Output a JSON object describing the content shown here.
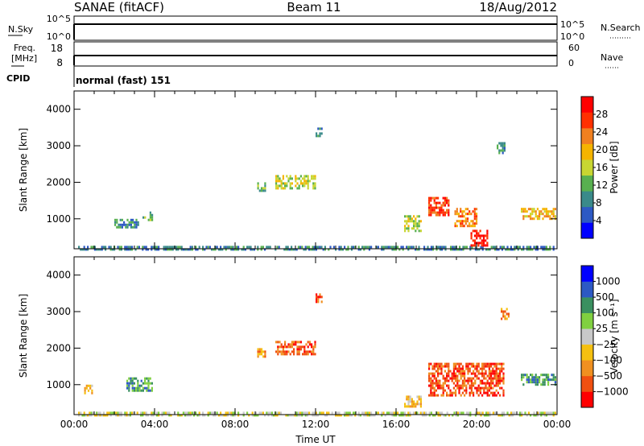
{
  "header": {
    "station": "SANAE (fitACF)",
    "beam": "Beam 11",
    "date": "18/Aug/2012"
  },
  "params": {
    "nsky_label": "N.Sky",
    "nsky_ticks": [
      "10^5",
      "10^0"
    ],
    "nsearch_label": "N.Search",
    "nsearch_ticks": [
      "10^5",
      "10^0"
    ],
    "freq_label_1": "Freq.",
    "freq_label_2": "[MHz]",
    "freq_ticks": [
      "18",
      "8"
    ],
    "nave_label": "Nave",
    "nave_ticks": [
      "60",
      "0"
    ],
    "cpid_label": "CPID",
    "cpid_text": "normal (fast) 151"
  },
  "chart_data": [
    {
      "type": "heatmap",
      "title": "",
      "xlabel": "Time UT",
      "ylabel": "Slant Range [km]",
      "xlim": [
        0,
        24
      ],
      "ylim": [
        180,
        4500
      ],
      "x_ticks": [
        "00:00",
        "04:00",
        "08:00",
        "12:00",
        "16:00",
        "20:00",
        "00:00"
      ],
      "y_ticks": [
        "1000",
        "2000",
        "3000",
        "4000"
      ],
      "colorbar": {
        "label": "Power [dB]",
        "ticks": [
          "28",
          "24",
          "20",
          "16",
          "12",
          "8",
          "4"
        ],
        "range": [
          0,
          30
        ],
        "colors": [
          "#0000ff",
          "#2d59c4",
          "#3a8a8a",
          "#58b050",
          "#c8d632",
          "#f5b400",
          "#f08020",
          "#ff3000",
          "#ff0000"
        ]
      },
      "echo_regions": [
        {
          "t0": 0.2,
          "t1": 23.9,
          "r0": 180,
          "r1": 260,
          "level": 2
        },
        {
          "t0": 2.0,
          "t1": 3.2,
          "r0": 800,
          "r1": 1000,
          "level": 2
        },
        {
          "t0": 3.4,
          "t1": 3.9,
          "r0": 950,
          "r1": 1200,
          "level": 3
        },
        {
          "t0": 9.1,
          "t1": 9.5,
          "r0": 1800,
          "r1": 2000,
          "level": 3
        },
        {
          "t0": 10.0,
          "t1": 12.0,
          "r0": 1850,
          "r1": 2200,
          "level": 4
        },
        {
          "t0": 12.0,
          "t1": 12.3,
          "r0": 3300,
          "r1": 3500,
          "level": 2
        },
        {
          "t0": 16.4,
          "t1": 17.2,
          "r0": 700,
          "r1": 1100,
          "level": 4
        },
        {
          "t0": 17.6,
          "t1": 18.6,
          "r0": 1100,
          "r1": 1600,
          "level": 7
        },
        {
          "t0": 18.9,
          "t1": 20.0,
          "r0": 800,
          "r1": 1300,
          "level": 6
        },
        {
          "t0": 19.7,
          "t1": 20.5,
          "r0": 300,
          "r1": 700,
          "level": 8
        },
        {
          "t0": 21.0,
          "t1": 21.4,
          "r0": 2800,
          "r1": 3100,
          "level": 2
        },
        {
          "t0": 22.2,
          "t1": 23.9,
          "r0": 1000,
          "r1": 1300,
          "level": 5
        }
      ]
    },
    {
      "type": "heatmap",
      "title": "",
      "xlabel": "Time UT",
      "ylabel": "Slant Range [km]",
      "xlim": [
        0,
        24
      ],
      "ylim": [
        180,
        4500
      ],
      "x_ticks": [
        "00:00",
        "04:00",
        "08:00",
        "12:00",
        "16:00",
        "20:00",
        "00:00"
      ],
      "y_ticks": [
        "1000",
        "2000",
        "3000",
        "4000"
      ],
      "colorbar": {
        "label": "Velocity [m s⁻¹]",
        "ticks": [
          "1000",
          "500",
          "100",
          "25",
          "−25",
          "−100",
          "−500",
          "−1000"
        ],
        "range": [
          -1000,
          1000
        ],
        "colors": [
          "#ff0000",
          "#f05010",
          "#f09020",
          "#f5c010",
          "#c8c8c8",
          "#80d040",
          "#3a9060",
          "#2d59c4",
          "#0000ff"
        ]
      },
      "echo_regions": [
        {
          "t0": 0.2,
          "t1": 23.9,
          "r0": 180,
          "r1": 260,
          "level": 4
        },
        {
          "t0": 0.5,
          "t1": 0.9,
          "r0": 800,
          "r1": 1000,
          "level": 3
        },
        {
          "t0": 2.6,
          "t1": 3.9,
          "r0": 850,
          "r1": 1200,
          "level": 6
        },
        {
          "t0": 9.1,
          "t1": 9.5,
          "r0": 1800,
          "r1": 2000,
          "level": 2
        },
        {
          "t0": 10.0,
          "t1": 12.0,
          "r0": 1850,
          "r1": 2200,
          "level": 1
        },
        {
          "t0": 12.0,
          "t1": 12.3,
          "r0": 3300,
          "r1": 3500,
          "level": 1
        },
        {
          "t0": 17.6,
          "t1": 21.3,
          "r0": 700,
          "r1": 1600,
          "level": 1
        },
        {
          "t0": 16.4,
          "t1": 17.2,
          "r0": 400,
          "r1": 700,
          "level": 3
        },
        {
          "t0": 21.2,
          "t1": 21.6,
          "r0": 2800,
          "r1": 3100,
          "level": 2
        },
        {
          "t0": 22.2,
          "t1": 23.9,
          "r0": 1000,
          "r1": 1300,
          "level": 6
        }
      ]
    }
  ]
}
